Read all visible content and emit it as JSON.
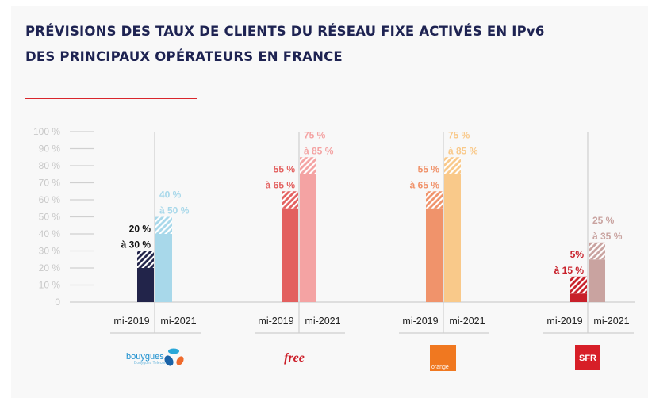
{
  "title_line1": "PRÉVISIONS DES TAUX DE CLIENTS DU RÉSEAU FIXE ACTIVÉS EN IPv6",
  "title_line2": "DES PRINCIPAUX OPÉRATEURS EN FRANCE",
  "chart_data": {
    "type": "bar",
    "ylim": [
      0,
      100
    ],
    "yticks": [
      "0",
      "10 %",
      "20 %",
      "30 %",
      "40 %",
      "50 %",
      "60 %",
      "70 %",
      "80 %",
      "90 %",
      "100 %"
    ],
    "ytick_values": [
      0,
      10,
      20,
      30,
      40,
      50,
      60,
      70,
      80,
      90,
      100
    ],
    "grid": false,
    "groups": [
      {
        "operator": "Bouygues Telecom",
        "logo_text": "bouygues",
        "bars": [
          {
            "category": "mi-2019",
            "low": 20,
            "high": 30,
            "label1": "20 %",
            "label2": "à 30 %",
            "color": "#22244a",
            "label_color": "#111111"
          },
          {
            "category": "mi-2021",
            "low": 40,
            "high": 50,
            "label1": "40 %",
            "label2": "à 50 %",
            "color": "#a8d8ea",
            "label_color": "#a8d8ea"
          }
        ]
      },
      {
        "operator": "Free",
        "logo_text": "free",
        "bars": [
          {
            "category": "mi-2019",
            "low": 55,
            "high": 65,
            "label1": "55 %",
            "label2": "à 65 %",
            "color": "#e3605f",
            "label_color": "#e3605f"
          },
          {
            "category": "mi-2021",
            "low": 75,
            "high": 85,
            "label1": "75 %",
            "label2": "à 85 %",
            "color": "#f4a3a3",
            "label_color": "#f4a3a3"
          }
        ]
      },
      {
        "operator": "Orange",
        "logo_text": "orange",
        "bars": [
          {
            "category": "mi-2019",
            "low": 55,
            "high": 65,
            "label1": "55 %",
            "label2": "à 65 %",
            "color": "#f0936b",
            "label_color": "#f0936b"
          },
          {
            "category": "mi-2021",
            "low": 75,
            "high": 85,
            "label1": "75 %",
            "label2": "à 85 %",
            "color": "#f9c98a",
            "label_color": "#f9c98a"
          }
        ]
      },
      {
        "operator": "SFR",
        "logo_text": "SFR",
        "bars": [
          {
            "category": "mi-2019",
            "low": 5,
            "high": 15,
            "label1": "5%",
            "label2": "à 15 %",
            "color": "#c8202a",
            "label_color": "#c8202a"
          },
          {
            "category": "mi-2021",
            "low": 25,
            "high": 35,
            "label1": "25 %",
            "label2": "à 35 %",
            "color": "#c9a3a0",
            "label_color": "#c9a3a0"
          }
        ]
      }
    ]
  }
}
